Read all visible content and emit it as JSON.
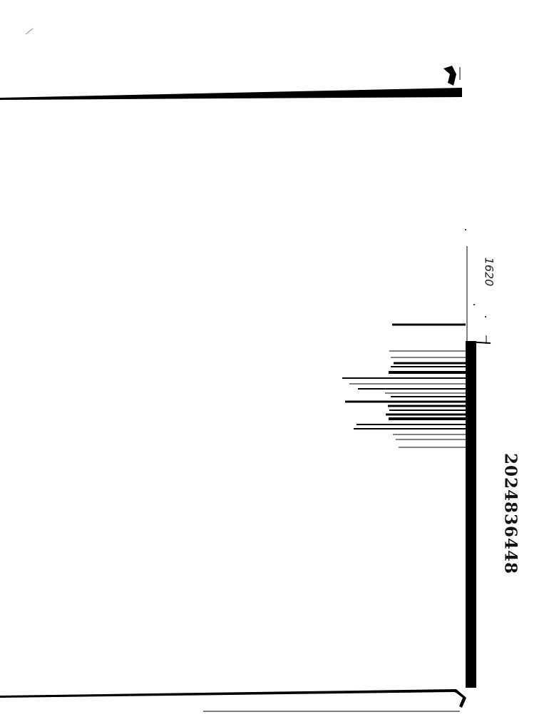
{
  "document": {
    "id_number": "2024836448",
    "handwritten_note": "1620"
  },
  "colors": {
    "ink": "#000000",
    "paper": "#ffffff"
  }
}
